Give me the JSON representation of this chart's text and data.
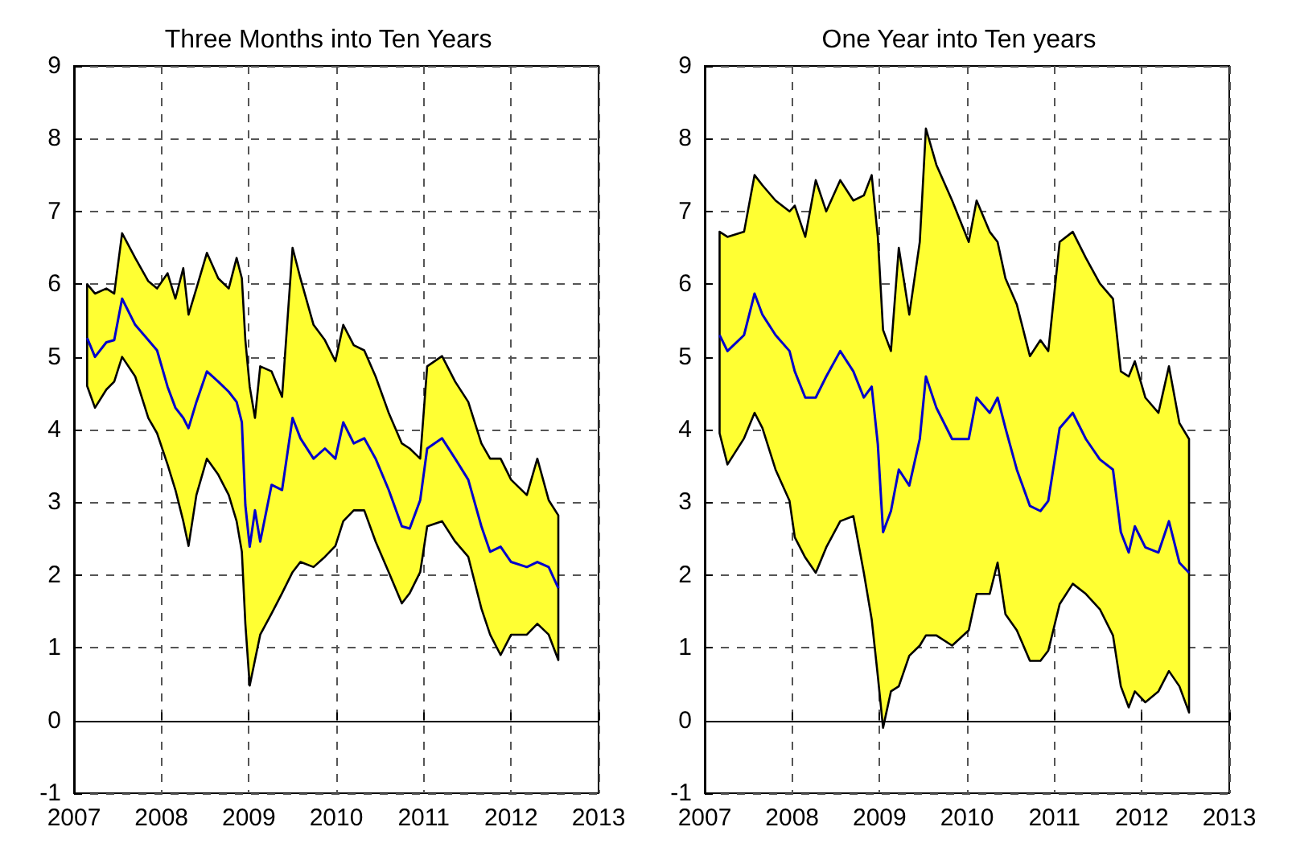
{
  "chart_data": [
    {
      "type": "line",
      "title": "Three Months into Ten Years",
      "x": [
        2007.15,
        2007.24,
        2007.37,
        2007.46,
        2007.55,
        2007.7,
        2007.85,
        2007.95,
        2008.07,
        2008.16,
        2008.25,
        2008.31,
        2008.4,
        2008.52,
        2008.65,
        2008.77,
        2008.86,
        2008.92,
        2008.96,
        2009.01,
        2009.07,
        2009.13,
        2009.26,
        2009.38,
        2009.5,
        2009.59,
        2009.74,
        2009.87,
        2009.99,
        2010.08,
        2010.2,
        2010.32,
        2010.45,
        2010.6,
        2010.75,
        2010.84,
        2010.96,
        2011.04,
        2011.21,
        2011.36,
        2011.51,
        2011.66,
        2011.76,
        2011.88,
        2012.0,
        2012.18,
        2012.3,
        2012.43,
        2012.54
      ],
      "series": [
        {
          "color": "#0000cc",
          "values": [
            5.26,
            5.0,
            5.2,
            5.23,
            5.8,
            5.44,
            5.23,
            5.09,
            4.59,
            4.3,
            4.16,
            4.02,
            4.38,
            4.8,
            4.66,
            4.52,
            4.38,
            4.1,
            2.96,
            2.39,
            2.89,
            2.46,
            3.24,
            3.17,
            4.16,
            3.88,
            3.6,
            3.74,
            3.6,
            4.1,
            3.81,
            3.88,
            3.6,
            3.17,
            2.67,
            2.64,
            3.03,
            3.74,
            3.88,
            3.6,
            3.31,
            2.67,
            2.32,
            2.39,
            2.18,
            2.11,
            2.18,
            2.11,
            1.82
          ],
          "upper": [
            6.0,
            5.87,
            5.94,
            5.87,
            6.7,
            6.36,
            6.04,
            5.94,
            6.15,
            5.8,
            6.22,
            5.58,
            5.94,
            6.43,
            6.08,
            5.94,
            6.36,
            6.08,
            5.23,
            4.59,
            4.16,
            4.87,
            4.8,
            4.45,
            6.5,
            6.08,
            5.44,
            5.23,
            4.94,
            5.44,
            5.16,
            5.09,
            4.73,
            4.23,
            3.81,
            3.74,
            3.6,
            4.87,
            5.01,
            4.66,
            4.38,
            3.81,
            3.6,
            3.6,
            3.31,
            3.1,
            3.6,
            3.03,
            2.82
          ],
          "lower": [
            4.6,
            4.3,
            4.55,
            4.66,
            5.0,
            4.73,
            4.16,
            3.95,
            3.52,
            3.17,
            2.74,
            2.4,
            3.1,
            3.6,
            3.38,
            3.1,
            2.74,
            2.32,
            1.33,
            0.48,
            0.83,
            1.18,
            1.47,
            1.75,
            2.04,
            2.18,
            2.11,
            2.25,
            2.4,
            2.74,
            2.89,
            2.89,
            2.46,
            2.04,
            1.61,
            1.75,
            2.04,
            2.67,
            2.74,
            2.46,
            2.25,
            1.54,
            1.18,
            0.9,
            1.18,
            1.18,
            1.33,
            1.18,
            0.83
          ]
        }
      ],
      "xlim": [
        2007,
        2013
      ],
      "xticks": [
        2007,
        2008,
        2009,
        2010,
        2011,
        2012,
        2013
      ],
      "ylim": [
        -1,
        9
      ],
      "yticks": [
        -1,
        0,
        1,
        2,
        3,
        4,
        5,
        6,
        7,
        8,
        9
      ],
      "grid": true
    },
    {
      "type": "line",
      "title": "One Year into Ten years",
      "x": [
        2007.17,
        2007.26,
        2007.45,
        2007.57,
        2007.66,
        2007.81,
        2007.97,
        2008.03,
        2008.15,
        2008.27,
        2008.39,
        2008.55,
        2008.7,
        2008.82,
        2008.91,
        2008.98,
        2009.04,
        2009.13,
        2009.22,
        2009.34,
        2009.46,
        2009.53,
        2009.65,
        2009.83,
        2010.02,
        2010.11,
        2010.26,
        2010.35,
        2010.44,
        2010.57,
        2010.72,
        2010.84,
        2010.93,
        2011.06,
        2011.21,
        2011.36,
        2011.52,
        2011.67,
        2011.76,
        2011.85,
        2011.92,
        2012.04,
        2012.19,
        2012.31,
        2012.43,
        2012.54
      ],
      "series": [
        {
          "color": "#0000cc",
          "values": [
            5.3,
            5.08,
            5.3,
            5.87,
            5.58,
            5.3,
            5.08,
            4.8,
            4.44,
            4.44,
            4.73,
            5.08,
            4.8,
            4.44,
            4.59,
            3.8,
            2.59,
            2.88,
            3.45,
            3.23,
            3.87,
            4.73,
            4.3,
            3.87,
            3.87,
            4.44,
            4.23,
            4.44,
            4.02,
            3.45,
            2.95,
            2.88,
            3.02,
            4.02,
            4.23,
            3.87,
            3.59,
            3.45,
            2.59,
            2.31,
            2.67,
            2.38,
            2.31,
            2.74,
            2.17,
            2.03
          ],
          "upper": [
            6.72,
            6.65,
            6.72,
            7.5,
            7.36,
            7.15,
            7.0,
            7.08,
            6.65,
            7.43,
            7.0,
            7.43,
            7.15,
            7.22,
            7.5,
            6.65,
            5.37,
            5.08,
            6.5,
            5.58,
            6.58,
            8.14,
            7.64,
            7.15,
            6.58,
            7.15,
            6.72,
            6.58,
            6.08,
            5.72,
            5.01,
            5.23,
            5.08,
            6.58,
            6.72,
            6.36,
            6.01,
            5.8,
            4.8,
            4.73,
            4.94,
            4.44,
            4.23,
            4.87,
            4.09,
            3.87
          ],
          "lower": [
            3.95,
            3.52,
            3.88,
            4.23,
            4.02,
            3.45,
            3.02,
            2.52,
            2.24,
            2.03,
            2.38,
            2.74,
            2.81,
            2.03,
            1.39,
            0.61,
            -0.1,
            0.4,
            0.47,
            0.89,
            1.03,
            1.17,
            1.17,
            1.03,
            1.24,
            1.74,
            1.74,
            2.17,
            1.46,
            1.24,
            0.82,
            0.82,
            0.96,
            1.6,
            1.88,
            1.74,
            1.53,
            1.17,
            0.47,
            0.18,
            0.4,
            0.25,
            0.4,
            0.68,
            0.47,
            0.11
          ]
        }
      ],
      "xlim": [
        2007,
        2013
      ],
      "xticks": [
        2007,
        2008,
        2009,
        2010,
        2011,
        2012,
        2013
      ],
      "ylim": [
        -1,
        9
      ],
      "yticks": [
        -1,
        0,
        1,
        2,
        3,
        4,
        5,
        6,
        7,
        8,
        9
      ],
      "grid": true
    }
  ]
}
